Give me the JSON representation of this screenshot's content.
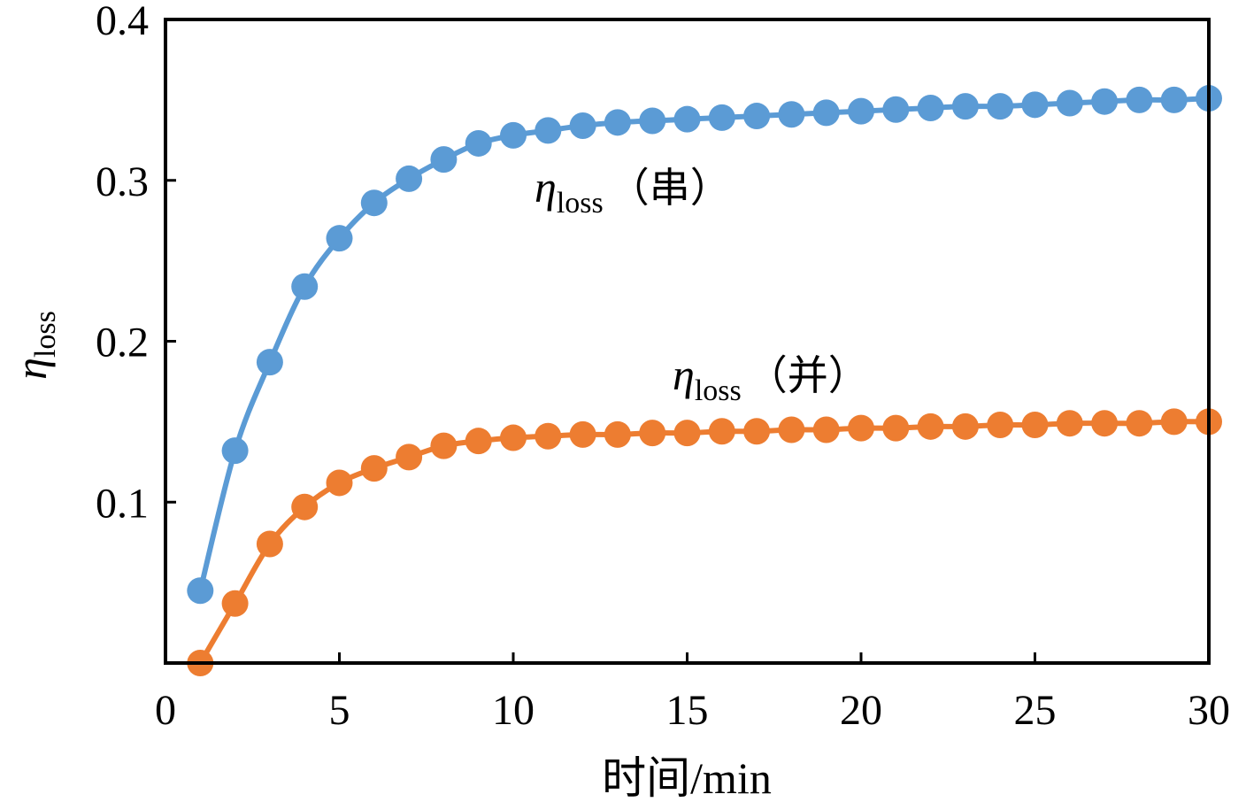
{
  "chart_data": {
    "type": "line",
    "title": "",
    "xlabel": "时间/min",
    "ylabel": {
      "symbol": "η",
      "subscript": "loss"
    },
    "xlim": [
      0,
      30
    ],
    "ylim": [
      0,
      0.4
    ],
    "x_ticks": [
      0,
      5,
      10,
      15,
      20,
      25,
      30
    ],
    "x_tick_labels": [
      "0",
      "5",
      "10",
      "15",
      "20",
      "25",
      "30"
    ],
    "y_ticks": [
      0.1,
      0.2,
      0.3,
      0.4
    ],
    "y_tick_labels": [
      "0.1",
      "0.2",
      "0.3",
      "0.4"
    ],
    "grid": false,
    "x": [
      1,
      2,
      3,
      4,
      5,
      6,
      7,
      8,
      9,
      10,
      11,
      12,
      13,
      14,
      15,
      16,
      17,
      18,
      19,
      20,
      21,
      22,
      23,
      24,
      25,
      26,
      27,
      28,
      29,
      30
    ],
    "series": [
      {
        "name": "串",
        "label_symbol": "η",
        "label_sub": "loss",
        "label_text": "（串）",
        "color": "#5b9bd5",
        "values": [
          0.045,
          0.132,
          0.187,
          0.234,
          0.264,
          0.286,
          0.301,
          0.313,
          0.323,
          0.328,
          0.331,
          0.334,
          0.336,
          0.337,
          0.338,
          0.339,
          0.34,
          0.341,
          0.342,
          0.343,
          0.344,
          0.345,
          0.346,
          0.346,
          0.347,
          0.348,
          0.349,
          0.35,
          0.35,
          0.351
        ]
      },
      {
        "name": "并",
        "label_symbol": "η",
        "label_sub": "loss",
        "label_text": "（并）",
        "color": "#ed7d31",
        "values": [
          0.0,
          0.037,
          0.074,
          0.097,
          0.112,
          0.121,
          0.128,
          0.135,
          0.138,
          0.14,
          0.141,
          0.142,
          0.142,
          0.143,
          0.143,
          0.144,
          0.144,
          0.145,
          0.145,
          0.146,
          0.146,
          0.147,
          0.147,
          0.148,
          0.148,
          0.149,
          0.149,
          0.149,
          0.15,
          0.15
        ]
      }
    ]
  }
}
